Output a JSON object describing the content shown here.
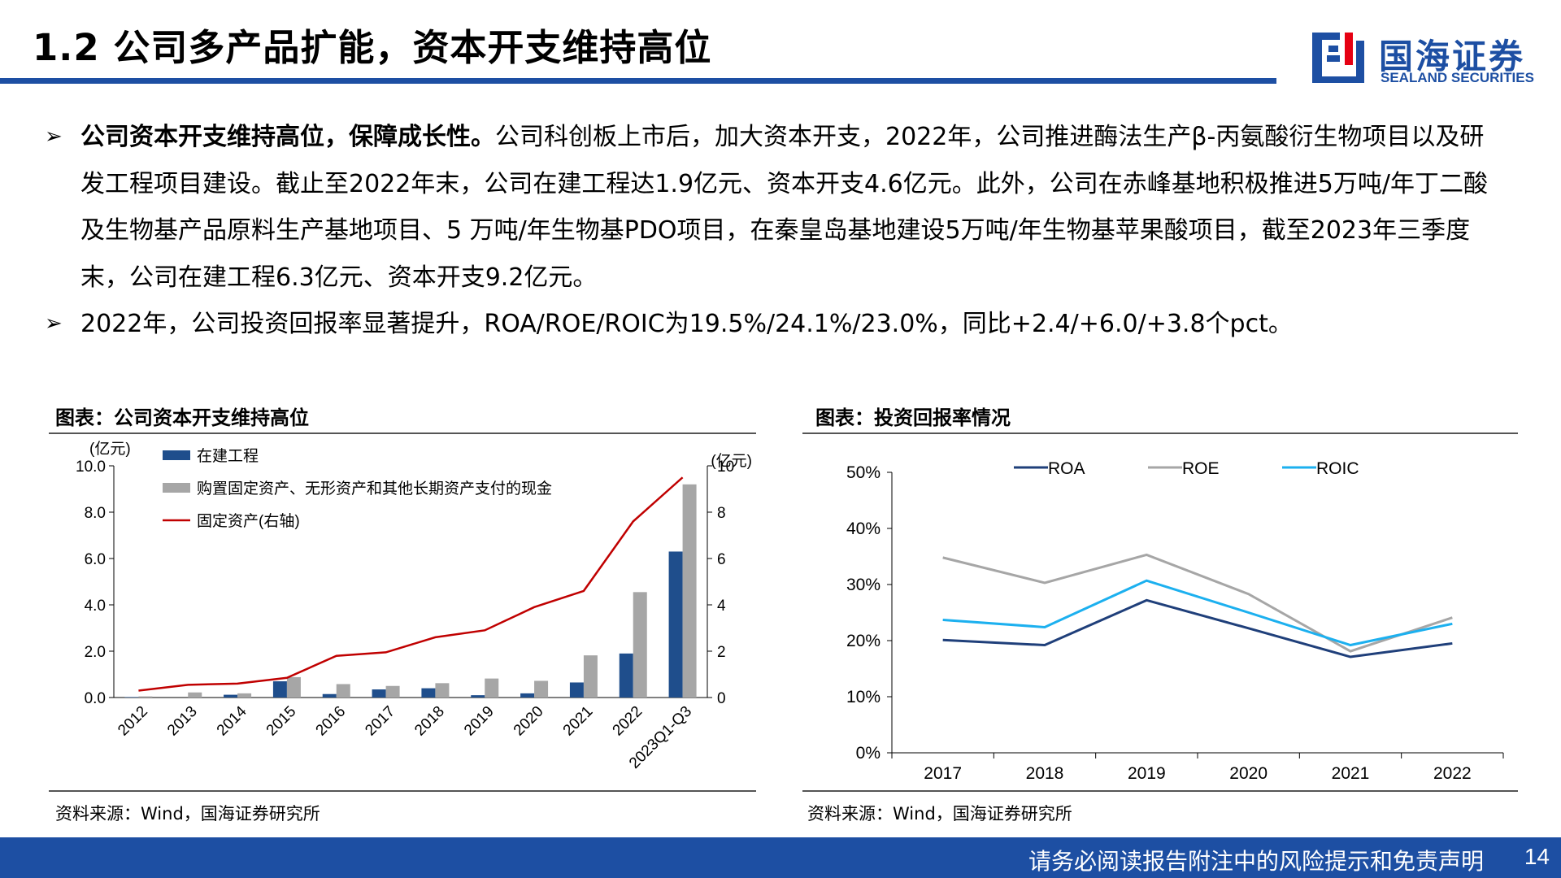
{
  "header": {
    "title": "1.2 公司多产品扩能，资本开支维持高位",
    "logo_cn": "国海证券",
    "logo_en": "SEALAND SECURITIES",
    "accent_color": "#1d4fa3"
  },
  "bullets": [
    {
      "strong": "公司资本开支维持高位，保障成长性。",
      "text": "公司科创板上市后，加大资本开支，2022年，公司推进酶法生产β-丙氨酸衍生物项目以及研发工程项目建设。截止至2022年末，公司在建工程达1.9亿元、资本开支4.6亿元。此外，公司在赤峰基地积极推进5万吨/年丁二酸及生物基产品原料生产基地项目、5 万吨/年生物基PDO项目，在秦皇岛基地建设5万吨/年生物基苹果酸项目，截至2023年三季度末，公司在建工程6.3亿元、资本开支9.2亿元。"
    },
    {
      "strong": "",
      "text": "2022年，公司投资回报率显著提升，ROA/ROE/ROIC为19.5%/24.1%/23.0%，同比+2.4/+6.0/+3.8个pct。"
    }
  ],
  "figures": {
    "left_title": "图表：公司资本开支维持高位",
    "left_source": "资料来源：Wind，国海证券研究所",
    "right_title": "图表：投资回报率情况",
    "right_source": "资料来源：Wind，国海证券研究所"
  },
  "footer": {
    "disclaimer": "请务必阅读报告附注中的风险提示和免责声明",
    "page": "14"
  },
  "chart_data": [
    {
      "type": "bar",
      "categories": [
        "2012",
        "2013",
        "2014",
        "2015",
        "2016",
        "2017",
        "2018",
        "2019",
        "2020",
        "2021",
        "2022",
        "2023Q1-Q3"
      ],
      "series": [
        {
          "name": "在建工程",
          "type": "bar",
          "axis": "left",
          "color": "#1f4e8c",
          "values": [
            0.02,
            0.0,
            0.12,
            0.7,
            0.15,
            0.35,
            0.4,
            0.1,
            0.18,
            0.65,
            1.9,
            6.3
          ]
        },
        {
          "name": "购置固定资产、无形资产和其他长期资产支付的现金",
          "type": "bar",
          "axis": "left",
          "color": "#a6a6a6",
          "values": [
            0.05,
            0.22,
            0.18,
            0.88,
            0.58,
            0.5,
            0.62,
            0.82,
            0.72,
            1.82,
            4.55,
            9.2
          ]
        },
        {
          "name": "固定资产(右轴)",
          "type": "line",
          "axis": "right",
          "color": "#c00000",
          "values": [
            0.3,
            0.55,
            0.6,
            0.85,
            1.8,
            1.95,
            2.6,
            2.9,
            3.9,
            4.6,
            7.6,
            9.5
          ]
        }
      ],
      "ylabel_left": "(亿元)",
      "ylabel_right": "(亿元)",
      "ylim_left": [
        0,
        10
      ],
      "ylim_right": [
        0,
        10
      ],
      "yticks_left": [
        "0.0",
        "2.0",
        "4.0",
        "6.0",
        "8.0",
        "10.0"
      ],
      "yticks_right": [
        "0",
        "2",
        "4",
        "6",
        "8",
        "10"
      ],
      "grid": false,
      "legend_position": "top-left"
    },
    {
      "type": "line",
      "x": [
        "2017",
        "2018",
        "2019",
        "2020",
        "2021",
        "2022"
      ],
      "series": [
        {
          "name": "ROA",
          "color": "#1f3f7a",
          "values": [
            20.1,
            19.2,
            27.2,
            22.2,
            17.1,
            19.5
          ]
        },
        {
          "name": "ROE",
          "color": "#a6a6a6",
          "values": [
            34.8,
            30.3,
            35.3,
            28.3,
            18.1,
            24.1
          ]
        },
        {
          "name": "ROIC",
          "color": "#1cb0ef",
          "values": [
            23.7,
            22.4,
            30.7,
            25.0,
            19.2,
            23.0
          ]
        }
      ],
      "ylim": [
        0,
        50
      ],
      "yticks": [
        "0%",
        "10%",
        "20%",
        "30%",
        "40%",
        "50%"
      ],
      "grid": false,
      "legend_position": "top"
    }
  ]
}
